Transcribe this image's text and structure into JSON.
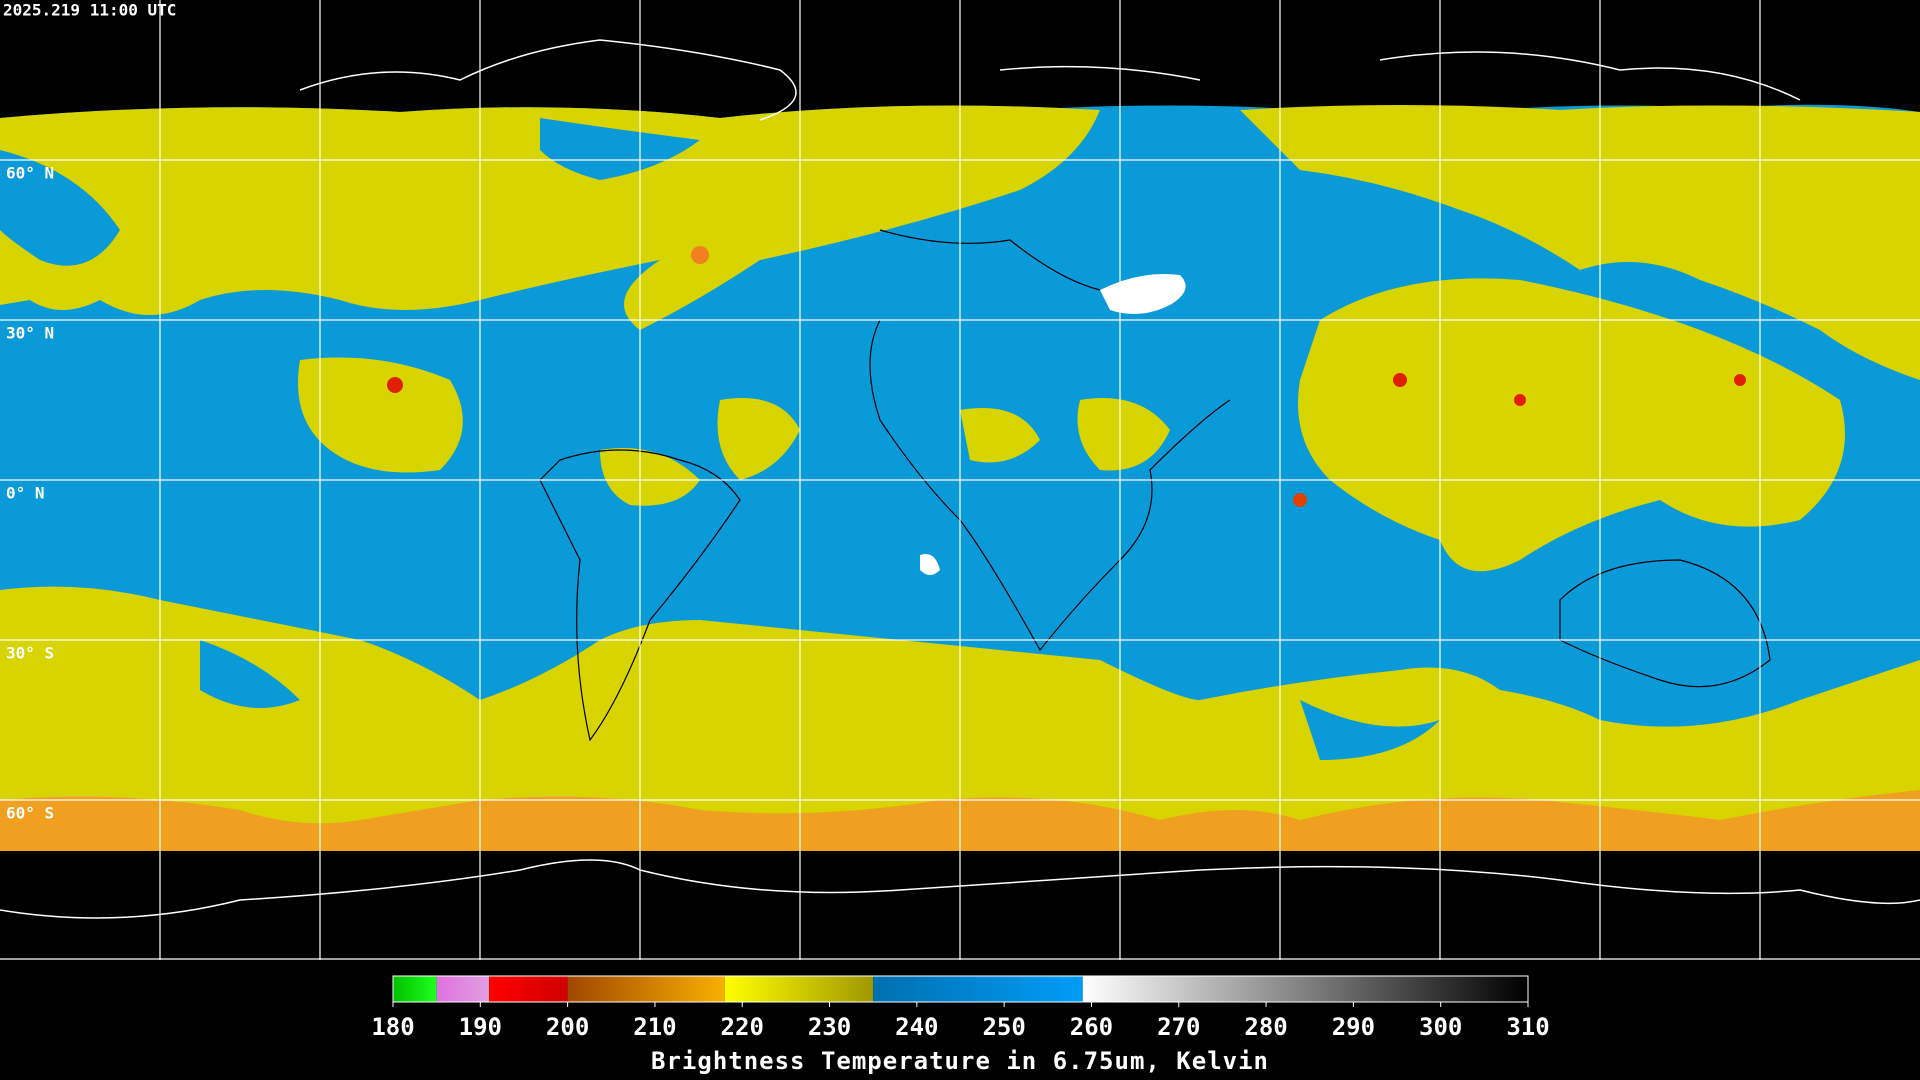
{
  "timestamp": "2025.219 11:00 UTC",
  "lat_labels": [
    "60° N",
    "30° N",
    "0° N",
    "30° S",
    "60° S"
  ],
  "colorbar": {
    "title": "Brightness Temperature in 6.75um, Kelvin",
    "range": [
      180,
      310
    ],
    "ticks": [
      180,
      190,
      200,
      210,
      220,
      230,
      240,
      250,
      260,
      270,
      280,
      290,
      300,
      310
    ],
    "segments": [
      {
        "from": 180,
        "to": 185,
        "colors": [
          "#00c000",
          "#20ff20"
        ]
      },
      {
        "from": 185,
        "to": 191,
        "colors": [
          "#e070e0",
          "#e0a0e0"
        ]
      },
      {
        "from": 191,
        "to": 200,
        "colors": [
          "#ff0000",
          "#d00000"
        ]
      },
      {
        "from": 200,
        "to": 218,
        "colors": [
          "#a04800",
          "#f8b000"
        ]
      },
      {
        "from": 218,
        "to": 235,
        "colors": [
          "#ffff00",
          "#a09800"
        ]
      },
      {
        "from": 235,
        "to": 259,
        "colors": [
          "#0070b0",
          "#009cf8"
        ]
      },
      {
        "from": 259,
        "to": 310,
        "colors": [
          "#ffffff",
          "#000000"
        ]
      }
    ]
  }
}
